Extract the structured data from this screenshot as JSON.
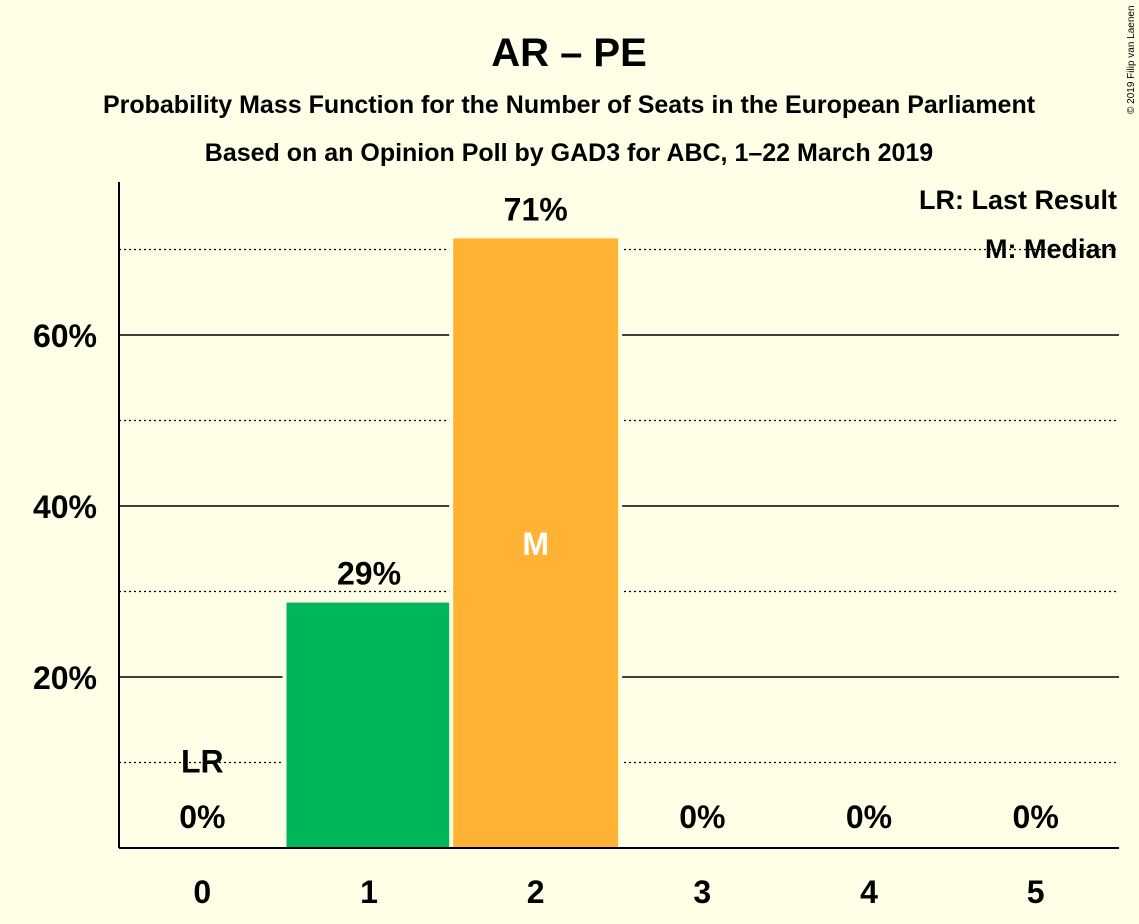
{
  "chart_data": {
    "type": "bar",
    "title": "AR – PE",
    "subtitle_1": "Probability Mass Function for the Number of Seats in the European Parliament",
    "subtitle_2": "Based on an Opinion Poll by GAD3 for ABC, 1–22 March 2019",
    "categories": [
      "0",
      "1",
      "2",
      "3",
      "4",
      "5"
    ],
    "values": [
      0,
      28.7,
      71.3,
      0,
      0,
      0
    ],
    "value_labels": [
      "0%",
      "29%",
      "71%",
      "0%",
      "0%",
      "0%"
    ],
    "ylim": [
      0,
      78
    ],
    "y_major_ticks": [
      20,
      40,
      60
    ],
    "y_tick_labels": [
      "20%",
      "40%",
      "60%"
    ],
    "y_minor_gridlines": [
      10,
      30,
      50,
      70
    ],
    "bar_colors": [
      "#00B65A",
      "#00B65A",
      "#FFB234",
      "#00B65A",
      "#00B65A",
      "#00B65A"
    ],
    "last_result_index": 0,
    "last_result_label": "LR",
    "median_index": 2,
    "median_label": "M",
    "legend": {
      "position": "top-right",
      "last_result": "LR: Last Result",
      "median": "M: Median"
    },
    "copyright": "© 2019 Filip van Laenen"
  }
}
